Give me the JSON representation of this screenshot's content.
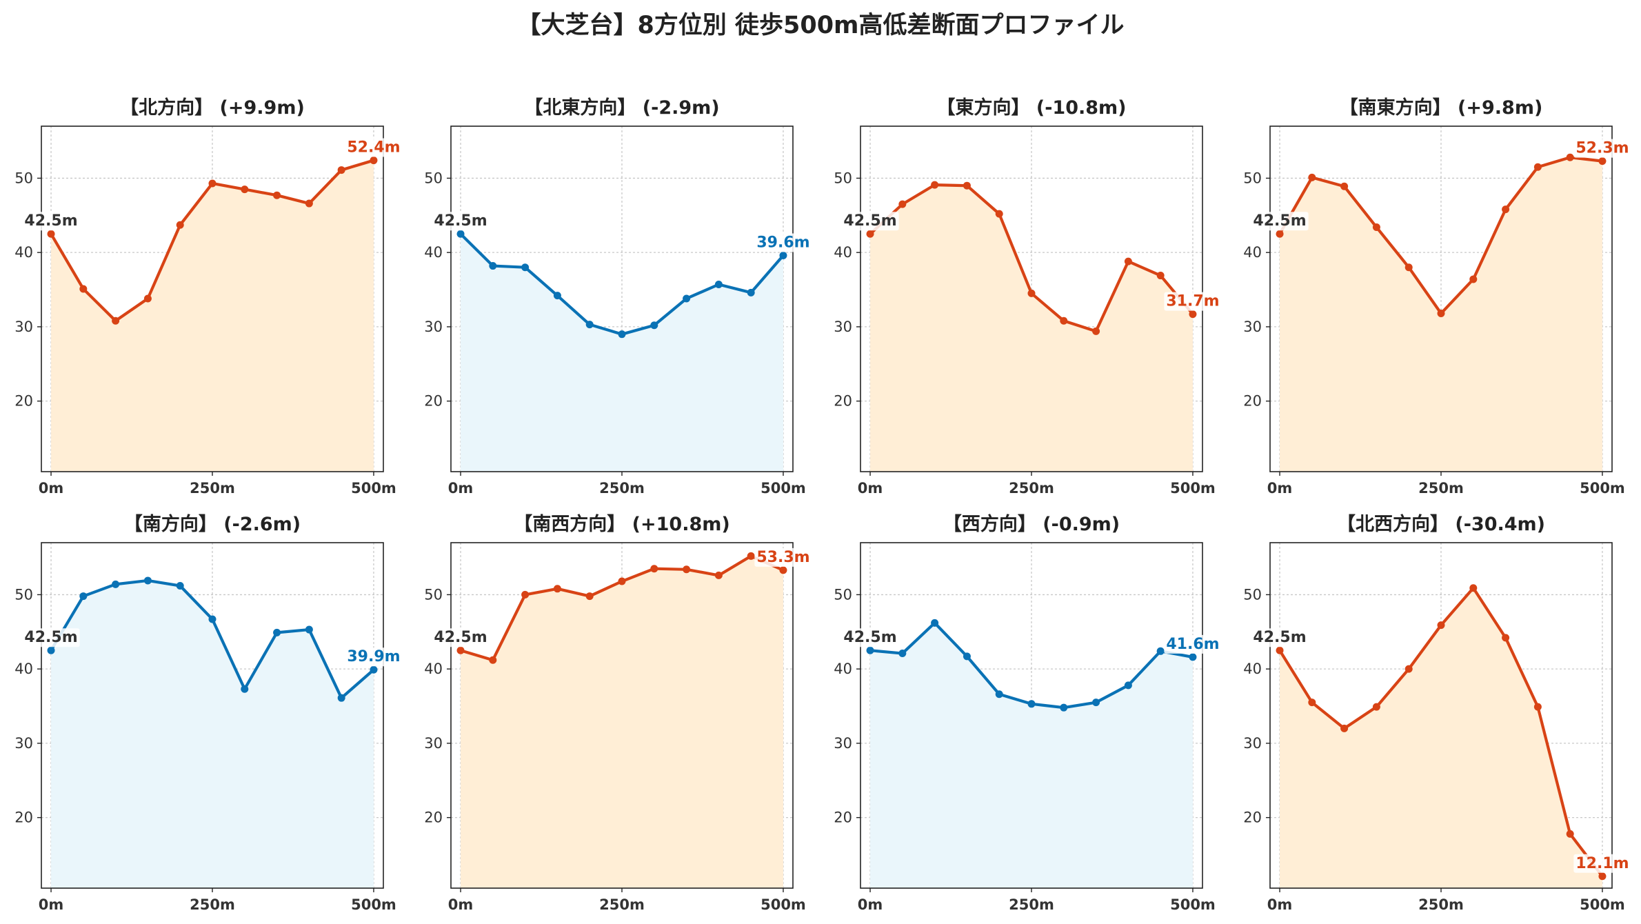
{
  "title": "【大芝台】8方位別 徒歩500m高低差断面プロファイル",
  "colors": {
    "up_line": "#D84315",
    "up_fill": "#FFEED6",
    "down_line": "#0A72B5",
    "down_fill": "#EAF6FB",
    "start_label": "#333333",
    "grid": "#c8c8c8"
  },
  "chart_data": [
    {
      "type": "line",
      "title": "【北方向】 (+9.9m)",
      "trend": "up",
      "x": [
        0,
        50,
        100,
        150,
        200,
        250,
        300,
        350,
        400,
        450,
        500
      ],
      "y": [
        42.5,
        35.1,
        30.8,
        33.8,
        43.7,
        49.3,
        48.5,
        47.7,
        46.6,
        51.1,
        52.4
      ],
      "start_label": "42.5m",
      "end_label": "52.4m",
      "xticks": [
        "0m",
        "250m",
        "500m"
      ],
      "yticks": [
        20,
        30,
        40,
        50
      ],
      "xlim": [
        -15,
        515
      ],
      "ylim": [
        10.5,
        57
      ],
      "grid": true
    },
    {
      "type": "line",
      "title": "【北東方向】 (-2.9m)",
      "trend": "down",
      "x": [
        0,
        50,
        100,
        150,
        200,
        250,
        300,
        350,
        400,
        450,
        500
      ],
      "y": [
        42.5,
        38.2,
        38.0,
        34.2,
        30.3,
        29.0,
        30.2,
        33.8,
        35.7,
        34.6,
        39.6
      ],
      "start_label": "42.5m",
      "end_label": "39.6m",
      "xticks": [
        "0m",
        "250m",
        "500m"
      ],
      "yticks": [
        20,
        30,
        40,
        50
      ],
      "xlim": [
        -15,
        515
      ],
      "ylim": [
        10.5,
        57
      ],
      "grid": true
    },
    {
      "type": "line",
      "title": "【東方向】 (-10.8m)",
      "trend": "up",
      "x": [
        0,
        50,
        100,
        150,
        200,
        250,
        300,
        350,
        400,
        450,
        500
      ],
      "y": [
        42.5,
        46.5,
        49.1,
        49.0,
        45.2,
        34.5,
        30.8,
        29.4,
        38.8,
        36.9,
        31.7
      ],
      "start_label": "42.5m",
      "end_label": "31.7m",
      "xticks": [
        "0m",
        "250m",
        "500m"
      ],
      "yticks": [
        20,
        30,
        40,
        50
      ],
      "xlim": [
        -15,
        515
      ],
      "ylim": [
        10.5,
        57
      ],
      "grid": true
    },
    {
      "type": "line",
      "title": "【南東方向】 (+9.8m)",
      "trend": "up",
      "x": [
        0,
        50,
        100,
        150,
        200,
        250,
        300,
        350,
        400,
        450,
        500
      ],
      "y": [
        42.5,
        50.1,
        48.9,
        43.4,
        38.0,
        31.8,
        36.4,
        45.8,
        51.5,
        52.8,
        52.3
      ],
      "start_label": "42.5m",
      "end_label": "52.3m",
      "xticks": [
        "0m",
        "250m",
        "500m"
      ],
      "yticks": [
        20,
        30,
        40,
        50
      ],
      "xlim": [
        -15,
        515
      ],
      "ylim": [
        10.5,
        57
      ],
      "grid": true
    },
    {
      "type": "line",
      "title": "【南方向】 (-2.6m)",
      "trend": "down",
      "x": [
        0,
        50,
        100,
        150,
        200,
        250,
        300,
        350,
        400,
        450,
        500
      ],
      "y": [
        42.5,
        49.8,
        51.4,
        51.9,
        51.2,
        46.7,
        37.3,
        44.9,
        45.3,
        36.1,
        39.9
      ],
      "start_label": "42.5m",
      "end_label": "39.9m",
      "xticks": [
        "0m",
        "250m",
        "500m"
      ],
      "yticks": [
        20,
        30,
        40,
        50
      ],
      "xlim": [
        -15,
        515
      ],
      "ylim": [
        10.5,
        57
      ],
      "grid": true
    },
    {
      "type": "line",
      "title": "【南西方向】 (+10.8m)",
      "trend": "up",
      "x": [
        0,
        50,
        100,
        150,
        200,
        250,
        300,
        350,
        400,
        450,
        500
      ],
      "y": [
        42.5,
        41.2,
        50.0,
        50.8,
        49.8,
        51.8,
        53.5,
        53.4,
        52.6,
        55.2,
        53.3
      ],
      "start_label": "42.5m",
      "end_label": "53.3m",
      "xticks": [
        "0m",
        "250m",
        "500m"
      ],
      "yticks": [
        20,
        30,
        40,
        50
      ],
      "xlim": [
        -15,
        515
      ],
      "ylim": [
        10.5,
        57
      ],
      "grid": true
    },
    {
      "type": "line",
      "title": "【西方向】 (-0.9m)",
      "trend": "down",
      "x": [
        0,
        50,
        100,
        150,
        200,
        250,
        300,
        350,
        400,
        450,
        500
      ],
      "y": [
        42.5,
        42.1,
        46.2,
        41.7,
        36.6,
        35.3,
        34.8,
        35.5,
        37.8,
        42.4,
        41.6
      ],
      "start_label": "42.5m",
      "end_label": "41.6m",
      "xticks": [
        "0m",
        "250m",
        "500m"
      ],
      "yticks": [
        20,
        30,
        40,
        50
      ],
      "xlim": [
        -15,
        515
      ],
      "ylim": [
        10.5,
        57
      ],
      "grid": true
    },
    {
      "type": "line",
      "title": "【北西方向】 (-30.4m)",
      "trend": "up",
      "x": [
        0,
        50,
        100,
        150,
        200,
        250,
        300,
        350,
        400,
        450,
        500
      ],
      "y": [
        42.5,
        35.5,
        32.0,
        34.9,
        40.0,
        45.9,
        50.9,
        44.2,
        34.9,
        17.8,
        12.1
      ],
      "start_label": "42.5m",
      "end_label": "12.1m",
      "xticks": [
        "0m",
        "250m",
        "500m"
      ],
      "yticks": [
        20,
        30,
        40,
        50
      ],
      "xlim": [
        -15,
        515
      ],
      "ylim": [
        10.5,
        57
      ],
      "grid": true
    }
  ]
}
